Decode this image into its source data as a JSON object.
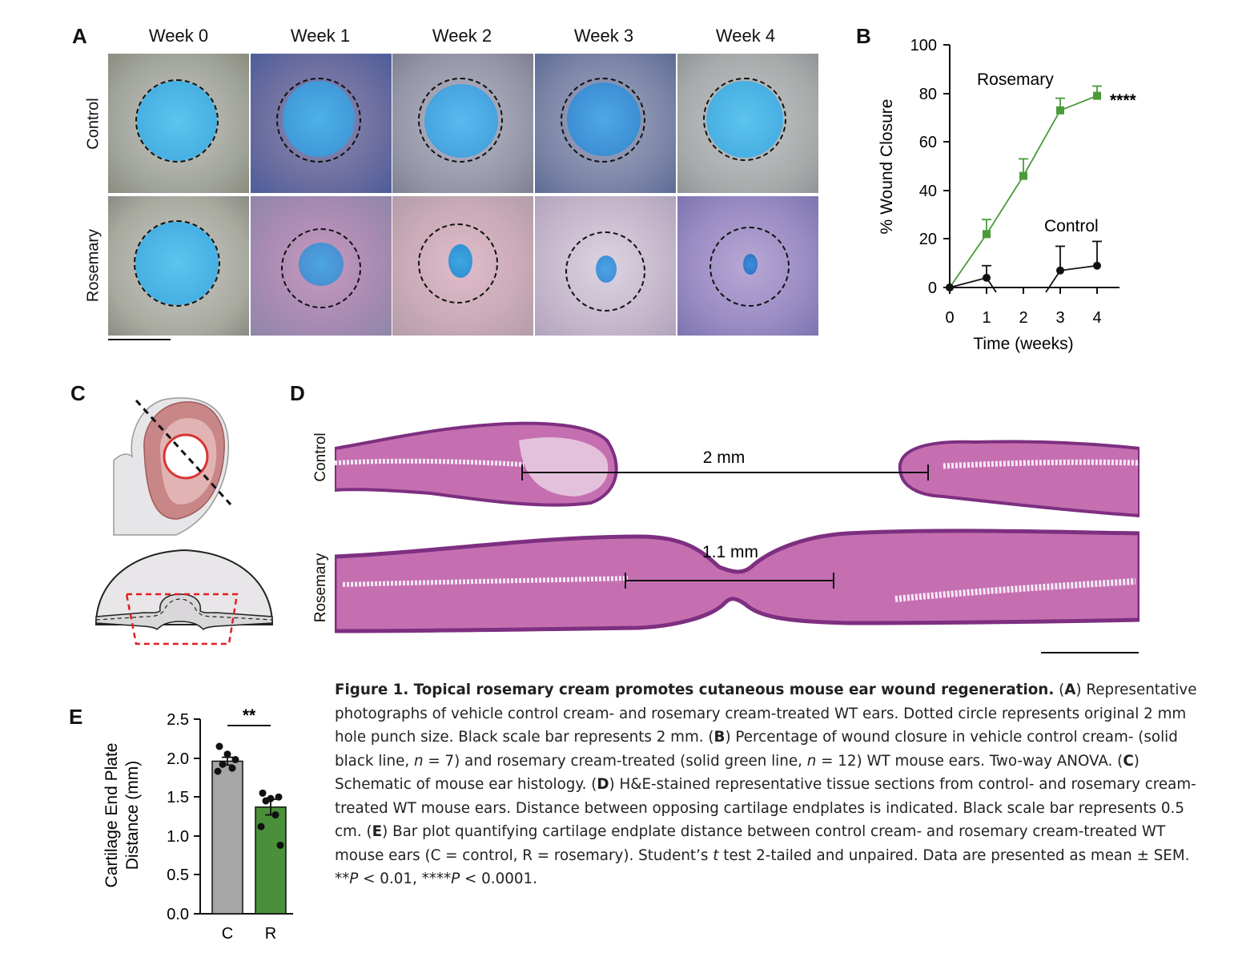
{
  "panel_letters": {
    "a": "A",
    "b": "B",
    "c": "C",
    "d": "D",
    "e": "E"
  },
  "panelA": {
    "columns": [
      "Week 0",
      "Week 1",
      "Week 2",
      "Week 3",
      "Week 4"
    ],
    "rows": [
      "Control",
      "Rosemary"
    ]
  },
  "panelB": {
    "ylabel": "% Wound Closure",
    "xlabel": "Time (weeks)",
    "yticks": [
      "0",
      "20",
      "40",
      "60",
      "80",
      "100"
    ],
    "xticks": [
      "0",
      "1",
      "2",
      "3",
      "4"
    ],
    "label_rosemary": "Rosemary",
    "label_control": "Control",
    "significance": "****"
  },
  "panelD": {
    "row_control": "Control",
    "row_rosemary": "Rosemary",
    "dist_control": "2 mm",
    "dist_rosemary": "1.1 mm"
  },
  "panelE": {
    "ylabel_line1": "Cartilage End Plate",
    "ylabel_line2": "Distance (mm)",
    "yticks": [
      "0.0",
      "0.5",
      "1.0",
      "1.5",
      "2.0",
      "2.5"
    ],
    "xticks": [
      "C",
      "R"
    ],
    "significance": "**"
  },
  "colors": {
    "control": "#111111",
    "rosemary": "#4a9a3a",
    "bar_c": "#a6a6a6",
    "bar_r": "#4a8f3a",
    "wound": "#4ab6e6",
    "tissue_pink": "#c05aa8"
  },
  "chart_data": [
    {
      "type": "line",
      "title": "",
      "xlabel": "Time (weeks)",
      "ylabel": "% Wound Closure",
      "xlim": [
        0,
        4
      ],
      "ylim": [
        0,
        100
      ],
      "x": [
        0,
        1,
        2,
        3,
        4
      ],
      "series": [
        {
          "name": "Rosemary",
          "values": [
            0,
            22,
            46,
            73,
            79
          ],
          "errors": [
            0,
            6,
            7,
            5,
            4
          ]
        },
        {
          "name": "Control",
          "values": [
            0,
            4,
            -10,
            7,
            9
          ],
          "errors": [
            0,
            5,
            0,
            10,
            10
          ]
        }
      ]
    },
    {
      "type": "bar",
      "title": "",
      "xlabel": "",
      "ylabel": "Cartilage End Plate Distance (mm)",
      "ylim": [
        0,
        2.5
      ],
      "categories": [
        "C",
        "R"
      ],
      "values": [
        1.96,
        1.37
      ],
      "errors": [
        0.05,
        0.1
      ],
      "points": [
        [
          2.15,
          2.05,
          1.98,
          1.92,
          1.87,
          1.83
        ],
        [
          1.55,
          1.48,
          1.5,
          1.45,
          1.27,
          1.12,
          0.88
        ]
      ]
    }
  ],
  "caption": {
    "title": "Figure 1. Topical rosemary cream promotes cutaneous mouse ear wound regeneration.",
    "a_label": "A",
    "a_text": ") Representative photographs of vehicle control cream- and rosemary cream-treated WT ears. Dotted circle represents original 2 mm hole punch size. Black scale bar represents 2 mm. (",
    "b_label": "B",
    "b_text1": ") Percentage of wound closure in vehicle control cream- (solid black line, ",
    "n": "n",
    "b_text2": " = 7) and rosemary cream-treated (solid green line, ",
    "b_text3": " = 12) WT mouse ears. Two-way ANOVA. (",
    "c_label": "C",
    "c_text": ") Schematic of mouse ear histology. (",
    "d_label": "D",
    "d_text": ") H&E-stained representative tissue sections from control- and rosemary cream-treated WT mouse ears. Distance between opposing cartilage endplates is indicated. Black scale bar represents 0.5 cm. (",
    "e_label": "E",
    "e_text1": ") Bar plot quantifying cartilage endplate distance between control cream- and rosemary cream-treated WT mouse ears (C = control, R = rosemary). Student’s ",
    "t": "t",
    "e_text2": " test 2-tailed and unpaired. Data are presented as mean ± SEM. **",
    "P": "P",
    "e_text3": " < 0.01, ****",
    "e_text4": " < 0.0001."
  }
}
